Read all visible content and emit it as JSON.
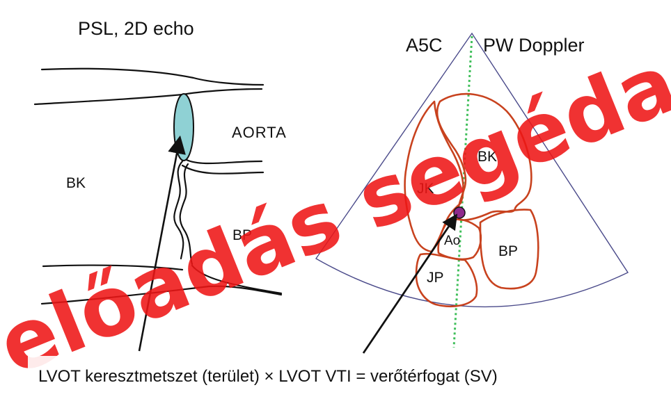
{
  "left_panel": {
    "title": "PSL, 2D echo",
    "labels": {
      "aorta": "AORTA",
      "bk": "BK",
      "bp": "BP"
    },
    "lvot_fill": "#8fd1d4"
  },
  "right_panel": {
    "title_view": "A5C",
    "title_mode": "PW Doppler",
    "labels": {
      "bk": "BK",
      "jk": "JK",
      "ao": "Ao",
      "bp": "BP",
      "jp": "JP"
    },
    "sample_volume_color": "#8e2a8c",
    "doppler_line_color": "#3fbf5a",
    "chamber_outline_color": "#c8421e"
  },
  "formula": "LVOT keresztmetszet (terület) × LVOT VTI = verőtérfogat (SV)",
  "watermark": "előadás segédanyag"
}
